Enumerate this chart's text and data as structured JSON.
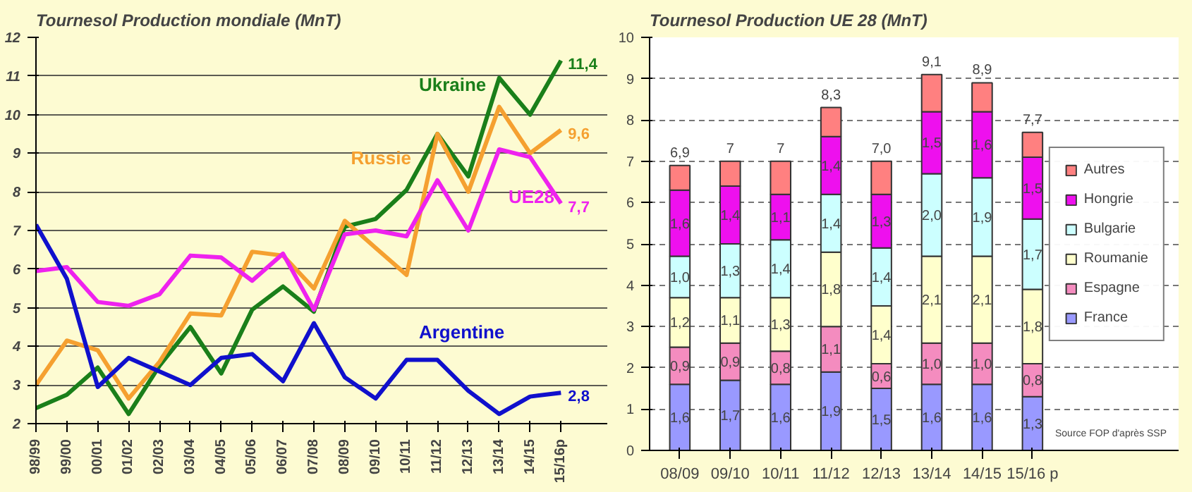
{
  "chart_data": [
    {
      "type": "line",
      "title": "Tournesol Production mondiale (MnT)",
      "categories": [
        "98/99",
        "99/00",
        "00/01",
        "01/02",
        "02/03",
        "03/04",
        "04/05",
        "05/06",
        "06/07",
        "07/08",
        "08/09",
        "09/10",
        "10/11",
        "11/12",
        "12/13",
        "13/14",
        "14/15",
        "15/16p"
      ],
      "series": [
        {
          "name": "Ukraine",
          "color": "#1a7f1a",
          "values": [
            2.4,
            2.75,
            3.45,
            2.25,
            3.5,
            4.5,
            3.3,
            4.95,
            5.55,
            4.9,
            7.1,
            7.3,
            8.05,
            9.5,
            8.4,
            10.95,
            10.0,
            11.4
          ],
          "value_labels": [
            null,
            null,
            null,
            null,
            null,
            null,
            null,
            null,
            null,
            null,
            null,
            null,
            null,
            null,
            null,
            null,
            null,
            "11,4"
          ]
        },
        {
          "name": "Russie",
          "color": "#f5a030",
          "values": [
            3.0,
            4.15,
            3.9,
            2.65,
            3.6,
            4.85,
            4.8,
            6.45,
            6.35,
            5.5,
            7.25,
            6.55,
            5.85,
            9.5,
            8.0,
            10.2,
            9.0,
            9.6
          ],
          "value_labels": [
            null,
            null,
            null,
            null,
            null,
            null,
            null,
            null,
            null,
            null,
            null,
            null,
            null,
            null,
            null,
            null,
            null,
            "9,6"
          ]
        },
        {
          "name": "UE28",
          "color": "#ee22ee",
          "values": [
            5.95,
            6.05,
            5.15,
            5.05,
            5.35,
            6.35,
            6.3,
            5.7,
            6.4,
            4.95,
            6.9,
            7.0,
            6.85,
            8.3,
            7.0,
            9.1,
            8.9,
            7.7
          ],
          "value_labels": [
            null,
            null,
            null,
            null,
            null,
            null,
            null,
            null,
            null,
            null,
            null,
            null,
            null,
            null,
            null,
            null,
            null,
            "7,7"
          ]
        },
        {
          "name": "Argentine",
          "color": "#1010cc",
          "values": [
            7.15,
            5.75,
            2.95,
            3.7,
            3.35,
            3.0,
            3.7,
            3.8,
            3.1,
            4.6,
            3.2,
            2.65,
            3.65,
            3.65,
            2.85,
            2.25,
            2.7,
            2.8
          ],
          "value_labels": [
            null,
            null,
            null,
            null,
            null,
            null,
            null,
            null,
            null,
            null,
            null,
            null,
            null,
            null,
            null,
            null,
            null,
            "2,8"
          ]
        }
      ],
      "ylim": [
        2,
        12
      ],
      "yticks": [
        2,
        3,
        4,
        5,
        6,
        7,
        8,
        9,
        10,
        11,
        12
      ],
      "grid": "y",
      "legend": false,
      "marker": "none",
      "line_style": "solid"
    },
    {
      "type": "bar",
      "stacked": true,
      "title": "Tournesol Production UE 28 (MnT)",
      "categories": [
        "08/09",
        "09/10",
        "10/11",
        "11/12",
        "12/13",
        "13/14",
        "14/15",
        "15/16 p"
      ],
      "series": [
        {
          "name": "France",
          "color": "#9999ff",
          "values": [
            1.6,
            1.7,
            1.6,
            1.9,
            1.5,
            1.6,
            1.6,
            1.3
          ],
          "value_labels": [
            "1,6",
            "1,7",
            "1,6",
            "1,9",
            "1,5",
            "1,6",
            "1,6",
            "1,3"
          ]
        },
        {
          "name": "Espagne",
          "color": "#f48cbf",
          "values": [
            0.9,
            0.9,
            0.8,
            1.1,
            0.6,
            1.0,
            1.0,
            0.8
          ],
          "value_labels": [
            "0,9",
            "0,9",
            "0,8",
            "1,1",
            "0,6",
            "1,0",
            "1,0",
            "0,8"
          ]
        },
        {
          "name": "Roumanie",
          "color": "#ffffcc",
          "values": [
            1.2,
            1.1,
            1.3,
            1.8,
            1.4,
            2.1,
            2.1,
            1.8
          ],
          "value_labels": [
            "1,2",
            "1,1",
            "1,3",
            "1,8",
            "1,4",
            "2,1",
            "2,1",
            "1,8"
          ]
        },
        {
          "name": "Bulgarie",
          "color": "#ccffff",
          "values": [
            1.0,
            1.3,
            1.4,
            1.4,
            1.4,
            2.0,
            1.9,
            1.7
          ],
          "value_labels": [
            "1,0",
            "1,3",
            "1,4",
            "1,4",
            "1,4",
            "2,0",
            "1,9",
            "1,7"
          ]
        },
        {
          "name": "Hongrie",
          "color": "#ee10ee",
          "values": [
            1.6,
            1.4,
            1.1,
            1.4,
            1.3,
            1.5,
            1.6,
            1.5
          ],
          "value_labels": [
            "1,6",
            "1,4",
            "1,1",
            "1,4",
            "1,3",
            "1,5",
            "1,6",
            "1,5"
          ]
        },
        {
          "name": "Autres",
          "color": "#ff8080",
          "values": [
            0.6,
            0.6,
            0.8,
            0.7,
            0.8,
            0.9,
            0.7,
            0.6
          ]
        }
      ],
      "totals": [
        "6,9",
        "7",
        "7",
        "8,3",
        "7,0",
        "9,1",
        "8,9",
        "7,7"
      ],
      "ylim": [
        0,
        10
      ],
      "yticks": [
        0,
        1,
        2,
        3,
        4,
        5,
        6,
        7,
        8,
        9,
        10
      ],
      "grid": "y",
      "legend": "right",
      "annotations": [
        "Source FOP d'après SSP"
      ]
    }
  ]
}
